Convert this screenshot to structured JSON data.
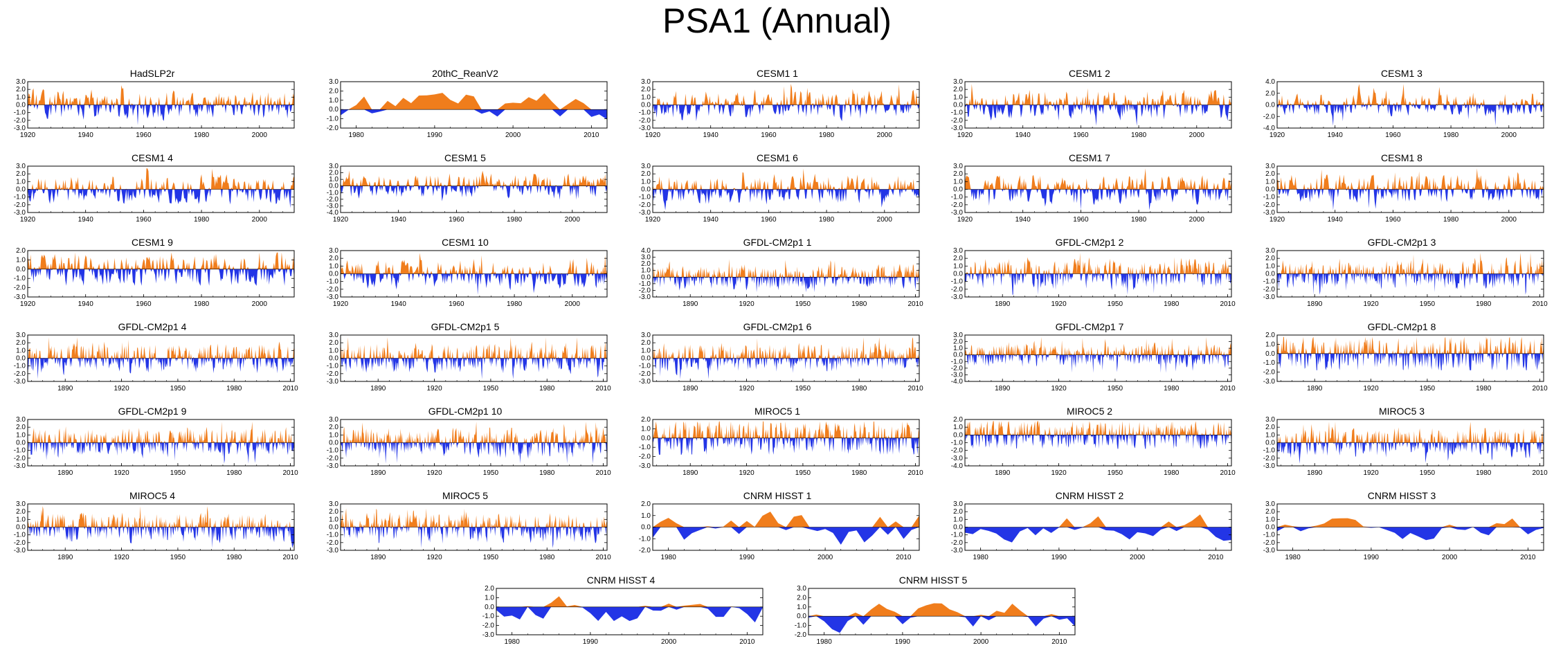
{
  "title": "PSA1 (Annual)",
  "colors": {
    "positive": "#f07d1c",
    "negative": "#2335e6",
    "axis": "#000000"
  },
  "chart_data": [
    {
      "type": "area",
      "title": "HadSLP2r",
      "xlim": [
        1920,
        2012
      ],
      "xticks": [
        1920,
        1940,
        1960,
        1980,
        2000
      ],
      "ylim": [
        -3,
        3
      ],
      "yticks": [
        "2.0",
        "1.0",
        "0.0",
        "-1.0",
        "-2.0",
        "-3.0"
      ],
      "ylabels": [
        "3.0",
        "2.0",
        "1.0",
        "0.0",
        "-1.0",
        "-2.0",
        "-3.0"
      ],
      "seed": 11
    },
    {
      "type": "area",
      "title": "20thC_ReanV2",
      "xlim": [
        1978,
        2012
      ],
      "xticks": [
        1980,
        1990,
        2000,
        2010
      ],
      "ylim": [
        -2,
        3
      ],
      "ylabels": [
        "3.0",
        "2.0",
        "1.0",
        "0.0",
        "-1.0",
        "-2.0"
      ],
      "seed": 12,
      "smooth": true
    },
    {
      "type": "area",
      "title": "CESM1 1",
      "xlim": [
        1920,
        2012
      ],
      "xticks": [
        1920,
        1940,
        1960,
        1980,
        2000
      ],
      "ylim": [
        -3,
        3
      ],
      "ylabels": [
        "3.0",
        "2.0",
        "1.0",
        "0.0",
        "-1.0",
        "-2.0",
        "-3.0"
      ],
      "seed": 13
    },
    {
      "type": "area",
      "title": "CESM1 2",
      "xlim": [
        1920,
        2012
      ],
      "xticks": [
        1920,
        1940,
        1960,
        1980,
        2000
      ],
      "ylim": [
        -3,
        3
      ],
      "ylabels": [
        "3.0",
        "2.0",
        "1.0",
        "0.0",
        "-1.0",
        "-2.0",
        "-3.0"
      ],
      "seed": 14
    },
    {
      "type": "area",
      "title": "CESM1 3",
      "xlim": [
        1920,
        2012
      ],
      "xticks": [
        1920,
        1940,
        1960,
        1980,
        2000
      ],
      "ylim": [
        -4,
        4
      ],
      "ylabels": [
        "4.0",
        "2.0",
        "0.0",
        "-2.0",
        "-4.0"
      ],
      "seed": 15
    },
    {
      "type": "area",
      "title": "CESM1 4",
      "xlim": [
        1920,
        2012
      ],
      "xticks": [
        1920,
        1940,
        1960,
        1980,
        2000
      ],
      "ylim": [
        -3,
        3
      ],
      "ylabels": [
        "3.0",
        "2.0",
        "1.0",
        "0.0",
        "-1.0",
        "-2.0",
        "-3.0"
      ],
      "seed": 16
    },
    {
      "type": "area",
      "title": "CESM1 5",
      "xlim": [
        1920,
        2012
      ],
      "xticks": [
        1920,
        1940,
        1960,
        1980,
        2000
      ],
      "ylim": [
        -4,
        3
      ],
      "ylabels": [
        "3.0",
        "2.0",
        "1.0",
        "0.0",
        "-1.0",
        "-2.0",
        "-3.0",
        "-4.0"
      ],
      "seed": 17
    },
    {
      "type": "area",
      "title": "CESM1 6",
      "xlim": [
        1920,
        2012
      ],
      "xticks": [
        1920,
        1940,
        1960,
        1980,
        2000
      ],
      "ylim": [
        -3,
        3
      ],
      "ylabels": [
        "3.0",
        "2.0",
        "1.0",
        "0.0",
        "-1.0",
        "-2.0",
        "-3.0"
      ],
      "seed": 18
    },
    {
      "type": "area",
      "title": "CESM1 7",
      "xlim": [
        1920,
        2012
      ],
      "xticks": [
        1920,
        1940,
        1960,
        1980,
        2000
      ],
      "ylim": [
        -3,
        3
      ],
      "ylabels": [
        "3.0",
        "2.0",
        "1.0",
        "0.0",
        "-1.0",
        "-2.0",
        "-3.0"
      ],
      "seed": 19
    },
    {
      "type": "area",
      "title": "CESM1 8",
      "xlim": [
        1920,
        2012
      ],
      "xticks": [
        1920,
        1940,
        1960,
        1980,
        2000
      ],
      "ylim": [
        -3,
        3
      ],
      "ylabels": [
        "3.0",
        "2.0",
        "1.0",
        "0.0",
        "-1.0",
        "-2.0",
        "-3.0"
      ],
      "seed": 20
    },
    {
      "type": "area",
      "title": "CESM1 9",
      "xlim": [
        1920,
        2012
      ],
      "xticks": [
        1920,
        1940,
        1960,
        1980,
        2000
      ],
      "ylim": [
        -3,
        2
      ],
      "ylabels": [
        "2.0",
        "1.0",
        "0.0",
        "-1.0",
        "-2.0",
        "-3.0"
      ],
      "seed": 21
    },
    {
      "type": "area",
      "title": "CESM1 10",
      "xlim": [
        1920,
        2012
      ],
      "xticks": [
        1920,
        1940,
        1960,
        1980,
        2000
      ],
      "ylim": [
        -3,
        3
      ],
      "ylabels": [
        "3.0",
        "2.0",
        "1.0",
        "0.0",
        "-1.0",
        "-2.0",
        "-3.0"
      ],
      "seed": 22
    },
    {
      "type": "area",
      "title": "GFDL-CM2p1 1",
      "xlim": [
        1870,
        2012
      ],
      "xticks": [
        1890,
        1920,
        1950,
        1980,
        2010
      ],
      "ylim": [
        -3,
        4
      ],
      "ylabels": [
        "4.0",
        "3.0",
        "2.0",
        "1.0",
        "0.0",
        "-1.0",
        "-2.0",
        "-3.0"
      ],
      "seed": 23
    },
    {
      "type": "area",
      "title": "GFDL-CM2p1 2",
      "xlim": [
        1870,
        2012
      ],
      "xticks": [
        1890,
        1920,
        1950,
        1980,
        2010
      ],
      "ylim": [
        -3,
        3
      ],
      "ylabels": [
        "3.0",
        "2.0",
        "1.0",
        "0.0",
        "-1.0",
        "-2.0",
        "-3.0"
      ],
      "seed": 24
    },
    {
      "type": "area",
      "title": "GFDL-CM2p1 3",
      "xlim": [
        1870,
        2012
      ],
      "xticks": [
        1890,
        1920,
        1950,
        1980,
        2010
      ],
      "ylim": [
        -3,
        3
      ],
      "ylabels": [
        "3.0",
        "2.0",
        "1.0",
        "0.0",
        "-1.0",
        "-2.0",
        "-3.0"
      ],
      "seed": 25
    },
    {
      "type": "area",
      "title": "GFDL-CM2p1 4",
      "xlim": [
        1870,
        2012
      ],
      "xticks": [
        1890,
        1920,
        1950,
        1980,
        2010
      ],
      "ylim": [
        -3,
        3
      ],
      "ylabels": [
        "3.0",
        "2.0",
        "1.0",
        "0.0",
        "-1.0",
        "-2.0",
        "-3.0"
      ],
      "seed": 26
    },
    {
      "type": "area",
      "title": "GFDL-CM2p1 5",
      "xlim": [
        1870,
        2012
      ],
      "xticks": [
        1890,
        1920,
        1950,
        1980,
        2010
      ],
      "ylim": [
        -3,
        3
      ],
      "ylabels": [
        "3.0",
        "2.0",
        "1.0",
        "0.0",
        "-1.0",
        "-2.0",
        "-3.0"
      ],
      "seed": 27
    },
    {
      "type": "area",
      "title": "GFDL-CM2p1 6",
      "xlim": [
        1870,
        2012
      ],
      "xticks": [
        1890,
        1920,
        1950,
        1980,
        2010
      ],
      "ylim": [
        -3,
        3
      ],
      "ylabels": [
        "3.0",
        "2.0",
        "1.0",
        "0.0",
        "-1.0",
        "-2.0",
        "-3.0"
      ],
      "seed": 28
    },
    {
      "type": "area",
      "title": "GFDL-CM2p1 7",
      "xlim": [
        1870,
        2012
      ],
      "xticks": [
        1890,
        1920,
        1950,
        1980,
        2010
      ],
      "ylim": [
        -4,
        3
      ],
      "ylabels": [
        "3.0",
        "2.0",
        "1.0",
        "0.0",
        "-1.0",
        "-2.0",
        "-3.0",
        "-4.0"
      ],
      "seed": 29
    },
    {
      "type": "area",
      "title": "GFDL-CM2p1 8",
      "xlim": [
        1870,
        2012
      ],
      "xticks": [
        1890,
        1920,
        1950,
        1980,
        2010
      ],
      "ylim": [
        -3,
        2
      ],
      "ylabels": [
        "2.0",
        "1.0",
        "0.0",
        "-1.0",
        "-2.0",
        "-3.0"
      ],
      "seed": 30
    },
    {
      "type": "area",
      "title": "GFDL-CM2p1 9",
      "xlim": [
        1870,
        2012
      ],
      "xticks": [
        1890,
        1920,
        1950,
        1980,
        2010
      ],
      "ylim": [
        -3,
        3
      ],
      "ylabels": [
        "3.0",
        "2.0",
        "1.0",
        "0.0",
        "-1.0",
        "-2.0",
        "-3.0"
      ],
      "seed": 31
    },
    {
      "type": "area",
      "title": "GFDL-CM2p1 10",
      "xlim": [
        1870,
        2012
      ],
      "xticks": [
        1890,
        1920,
        1950,
        1980,
        2010
      ],
      "ylim": [
        -3,
        3
      ],
      "ylabels": [
        "3.0",
        "2.0",
        "1.0",
        "0.0",
        "-1.0",
        "-2.0",
        "-3.0"
      ],
      "seed": 32
    },
    {
      "type": "area",
      "title": "MIROC5 1",
      "xlim": [
        1870,
        2012
      ],
      "xticks": [
        1890,
        1920,
        1950,
        1980,
        2010
      ],
      "ylim": [
        -3,
        2
      ],
      "ylabels": [
        "2.0",
        "1.0",
        "0.0",
        "-1.0",
        "-2.0",
        "-3.0"
      ],
      "seed": 33
    },
    {
      "type": "area",
      "title": "MIROC5 2",
      "xlim": [
        1870,
        2012
      ],
      "xticks": [
        1890,
        1920,
        1950,
        1980,
        2010
      ],
      "ylim": [
        -4,
        2
      ],
      "ylabels": [
        "2.0",
        "1.0",
        "0.0",
        "-1.0",
        "-2.0",
        "-3.0",
        "-4.0"
      ],
      "seed": 34
    },
    {
      "type": "area",
      "title": "MIROC5 3",
      "xlim": [
        1870,
        2012
      ],
      "xticks": [
        1890,
        1920,
        1950,
        1980,
        2010
      ],
      "ylim": [
        -3,
        3
      ],
      "ylabels": [
        "3.0",
        "2.0",
        "1.0",
        "0.0",
        "-1.0",
        "-2.0",
        "-3.0"
      ],
      "seed": 35
    },
    {
      "type": "area",
      "title": "MIROC5 4",
      "xlim": [
        1870,
        2012
      ],
      "xticks": [
        1890,
        1920,
        1950,
        1980,
        2010
      ],
      "ylim": [
        -3,
        3
      ],
      "ylabels": [
        "3.0",
        "2.0",
        "1.0",
        "0.0",
        "-1.0",
        "-2.0",
        "-3.0"
      ],
      "seed": 36
    },
    {
      "type": "area",
      "title": "MIROC5 5",
      "xlim": [
        1870,
        2012
      ],
      "xticks": [
        1890,
        1920,
        1950,
        1980,
        2010
      ],
      "ylim": [
        -3,
        3
      ],
      "ylabels": [
        "3.0",
        "2.0",
        "1.0",
        "0.0",
        "-1.0",
        "-2.0",
        "-3.0"
      ],
      "seed": 37
    },
    {
      "type": "area",
      "title": "CNRM HISST 1",
      "xlim": [
        1978,
        2012
      ],
      "xticks": [
        1980,
        1990,
        2000,
        2010
      ],
      "ylim": [
        -2,
        2
      ],
      "ylabels": [
        "2.0",
        "1.0",
        "0.0",
        "-1.0",
        "-2.0"
      ],
      "seed": 38,
      "smooth": true
    },
    {
      "type": "area",
      "title": "CNRM HISST 2",
      "xlim": [
        1978,
        2012
      ],
      "xticks": [
        1980,
        1990,
        2000,
        2010
      ],
      "ylim": [
        -3,
        3
      ],
      "ylabels": [
        "3.0",
        "2.0",
        "1.0",
        "0.0",
        "-1.0",
        "-2.0",
        "-3.0"
      ],
      "seed": 39,
      "smooth": true
    },
    {
      "type": "area",
      "title": "CNRM HISST 3",
      "xlim": [
        1978,
        2012
      ],
      "xticks": [
        1980,
        1990,
        2000,
        2010
      ],
      "ylim": [
        -3,
        3
      ],
      "ylabels": [
        "3.0",
        "2.0",
        "1.0",
        "0.0",
        "-1.0",
        "-2.0",
        "-3.0"
      ],
      "seed": 40,
      "smooth": true
    },
    {
      "type": "area",
      "title": "CNRM HISST 4",
      "xlim": [
        1978,
        2012
      ],
      "xticks": [
        1980,
        1990,
        2000,
        2010
      ],
      "ylim": [
        -3,
        2
      ],
      "ylabels": [
        "2.0",
        "1.0",
        "0.0",
        "-1.0",
        "-2.0",
        "-3.0"
      ],
      "seed": 41,
      "smooth": true
    },
    {
      "type": "area",
      "title": "CNRM HISST 5",
      "xlim": [
        1978,
        2012
      ],
      "xticks": [
        1980,
        1990,
        2000,
        2010
      ],
      "ylim": [
        -2,
        3
      ],
      "ylabels": [
        "3.0",
        "2.0",
        "1.0",
        "0.0",
        "-1.0",
        "-2.0"
      ],
      "seed": 42,
      "smooth": true
    }
  ]
}
